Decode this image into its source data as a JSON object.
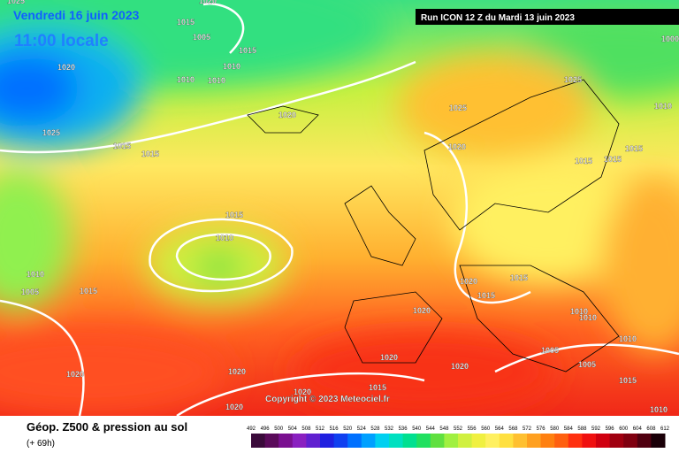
{
  "header": {
    "date": "Vendredi 16 juin 2023",
    "time": "11:00 locale",
    "run": "Run ICON 12 Z du Mardi 13 juin 2023"
  },
  "pressure_labels": [
    "1025",
    "1020",
    "1015",
    "1005",
    "1015",
    "1010",
    "1020",
    "1010",
    "1010",
    "1025",
    "1015",
    "1015",
    "1020",
    "1025",
    "1025",
    "1000",
    "1010",
    "1020",
    "1015",
    "1015",
    "1015",
    "1015",
    "1010",
    "1010",
    "1005",
    "1015",
    "1020",
    "1015",
    "1015",
    "1010",
    "1010",
    "1010",
    "1020",
    "1005",
    "1005",
    "1020",
    "1020",
    "1020",
    "1020",
    "1015",
    "1020",
    "1020",
    "1010",
    "1015"
  ],
  "copyright": "Copyright © 2023 Meteociel.fr",
  "footer": {
    "title": "Géop. Z500 & pression au sol",
    "lead": "(+ 69h)"
  },
  "colorbar": {
    "labels": [
      492,
      496,
      500,
      504,
      508,
      512,
      516,
      520,
      524,
      528,
      532,
      536,
      540,
      544,
      548,
      552,
      556,
      560,
      564,
      568,
      572,
      576,
      580,
      584,
      588,
      592,
      596,
      600,
      604,
      608,
      612
    ],
    "colors": [
      "#3a0a3a",
      "#5a0a5a",
      "#7a1090",
      "#8a20c0",
      "#6020d0",
      "#2020e0",
      "#1040f0",
      "#0070ff",
      "#00a0ff",
      "#00d0f0",
      "#00e0c0",
      "#00e090",
      "#20e060",
      "#60e040",
      "#a0f040",
      "#d0f040",
      "#f0f040",
      "#fff060",
      "#ffe040",
      "#ffc030",
      "#ffa020",
      "#ff8010",
      "#ff6010",
      "#ff3010",
      "#f01010",
      "#d00010",
      "#a00010",
      "#800010",
      "#500010",
      "#1a0008"
    ]
  }
}
